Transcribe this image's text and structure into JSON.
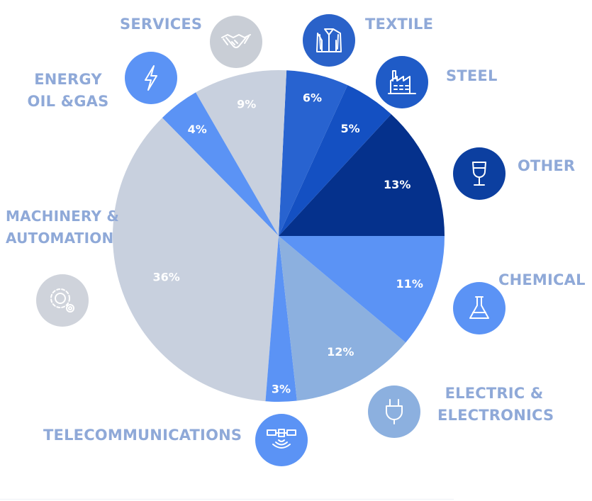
{
  "colors": {
    "label": "#8fa9d8",
    "slice_text": "#ffffff",
    "icon_stroke": "#ffffff"
  },
  "chart_data": {
    "type": "pie",
    "start_angle_deg": 0,
    "direction": "counterclockwise",
    "slices": [
      {
        "label": "OTHER",
        "value": 13,
        "display": "13%",
        "color": "#05318c",
        "icon": "wine-glass-icon",
        "icon_color": "#0c3fa0"
      },
      {
        "label": "STEEL",
        "value": 5,
        "display": "5%",
        "color": "#1450c2",
        "icon": "factory-icon",
        "icon_color": "#1f5bc7"
      },
      {
        "label": "TEXTILE",
        "value": 6,
        "display": "6%",
        "color": "#2863d0",
        "icon": "jacket-icon",
        "icon_color": "#2a62c9"
      },
      {
        "label": "SERVICES",
        "value": 9,
        "display": "9%",
        "color": "#c8d0de",
        "icon": "handshake-icon",
        "icon_color": "#c9ced6"
      },
      {
        "label": "ENERGY\nOIL &GAS",
        "value": 4,
        "display": "4%",
        "color": "#5b93f5",
        "icon": "lightning-icon",
        "icon_color": "#5b93f5"
      },
      {
        "label": "MACHINERY &\nAUTOMATION",
        "value": 36,
        "display": "36%",
        "color": "#c8d0de",
        "icon": "gears-icon",
        "icon_color": "#cfd3db"
      },
      {
        "label": "TELECOMMUNICATIONS",
        "value": 3,
        "display": "3%",
        "color": "#5b93f5",
        "icon": "satellite-icon",
        "icon_color": "#5b93f5"
      },
      {
        "label": "ELECTRIC &\nELECTRONICS",
        "value": 12,
        "display": "12%",
        "color": "#8cb0df",
        "icon": "plug-icon",
        "icon_color": "#8cb0df"
      },
      {
        "label": "CHEMICAL",
        "value": 11,
        "display": "11%",
        "color": "#5b93f5",
        "icon": "flask-icon",
        "icon_color": "#5b93f5"
      }
    ]
  }
}
